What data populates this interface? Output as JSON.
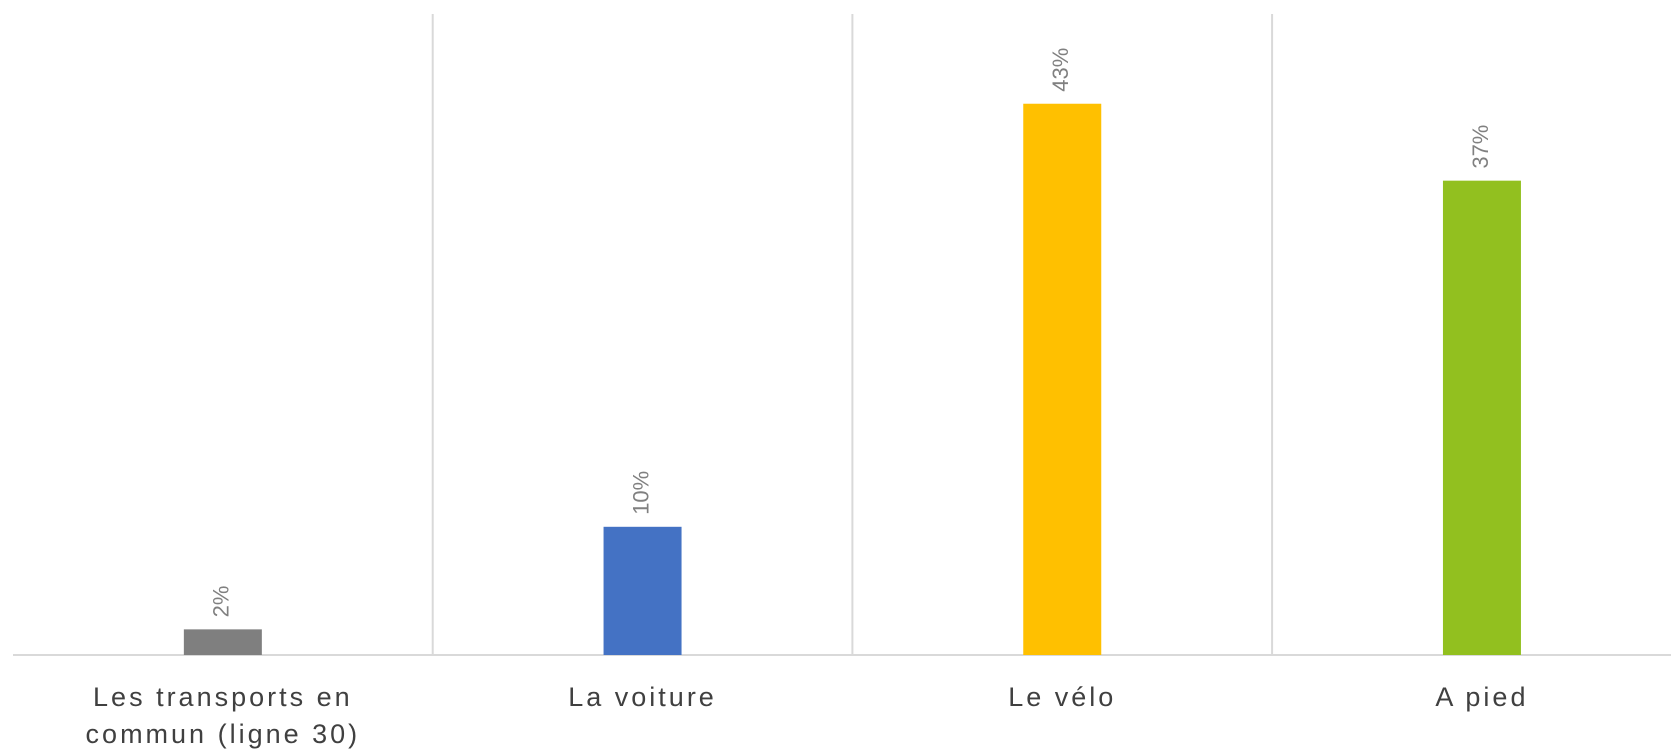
{
  "chart_data": {
    "type": "bar",
    "categories": [
      "Les transports en commun (ligne 30)",
      "La voiture",
      "Le vélo",
      "A pied"
    ],
    "values": [
      2,
      10,
      43,
      37
    ],
    "value_labels": [
      "2%",
      "10%",
      "43%",
      "37%"
    ],
    "colors": [
      "#7f7f7f",
      "#4472c4",
      "#ffc000",
      "#92c01f"
    ],
    "ylim": [
      0,
      50
    ]
  }
}
